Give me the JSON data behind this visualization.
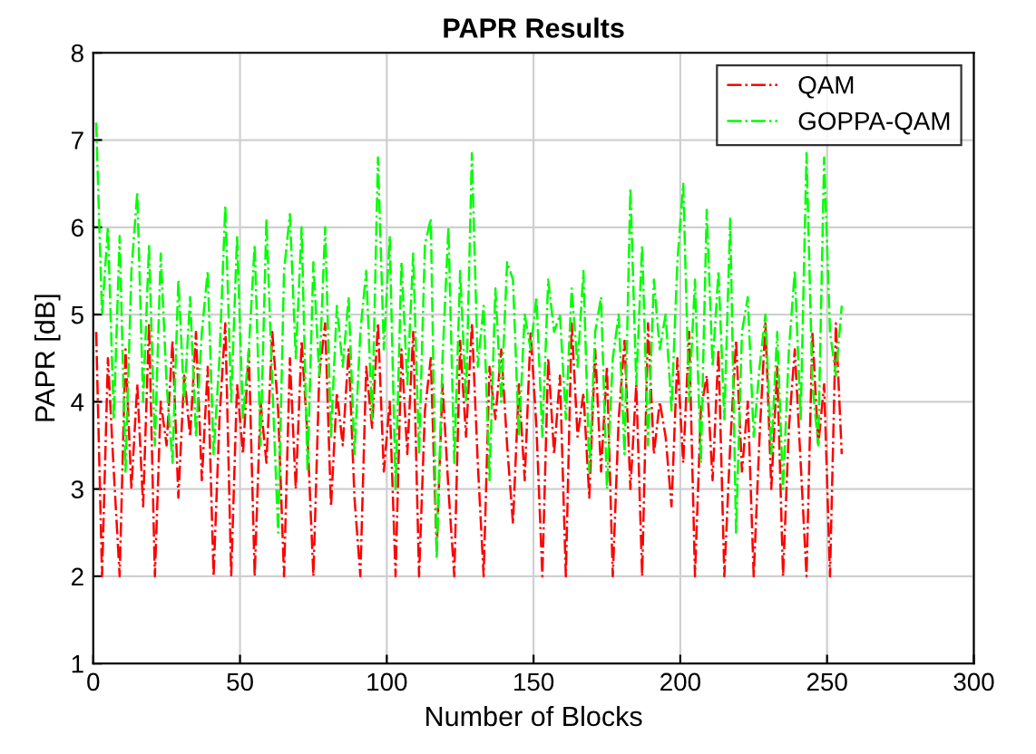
{
  "chart_data": {
    "type": "line",
    "title": "PAPR Results",
    "xlabel": "Number of Blocks",
    "ylabel": "PAPR [dB]",
    "x": [
      1,
      3,
      5,
      7,
      9,
      11,
      13,
      15,
      17,
      19,
      21,
      23,
      25,
      27,
      29,
      31,
      33,
      35,
      37,
      39,
      41,
      43,
      45,
      47,
      49,
      51,
      53,
      55,
      57,
      59,
      61,
      63,
      65,
      67,
      69,
      71,
      73,
      75,
      77,
      79,
      81,
      83,
      85,
      87,
      89,
      91,
      93,
      95,
      97,
      99,
      101,
      103,
      105,
      107,
      109,
      111,
      113,
      115,
      117,
      119,
      121,
      123,
      125,
      127,
      129,
      131,
      133,
      135,
      137,
      139,
      141,
      143,
      145,
      147,
      149,
      151,
      153,
      155,
      157,
      159,
      161,
      163,
      165,
      167,
      169,
      171,
      173,
      175,
      177,
      179,
      181,
      183,
      185,
      187,
      189,
      191,
      193,
      195,
      197,
      199,
      201,
      203,
      205,
      207,
      209,
      211,
      213,
      215,
      217,
      219,
      221,
      223,
      225,
      227,
      229,
      231,
      233,
      235,
      237,
      239,
      241,
      243,
      245,
      247,
      249,
      251,
      253,
      255
    ],
    "series": [
      {
        "name": "QAM",
        "color": "#ff0000",
        "values": [
          4.8,
          2.0,
          4.5,
          3.2,
          2.0,
          4.6,
          3.0,
          4.2,
          2.8,
          4.9,
          2.0,
          4.0,
          3.5,
          4.7,
          2.9,
          4.3,
          3.6,
          4.8,
          3.1,
          4.4,
          2.0,
          3.8,
          4.9,
          2.0,
          4.2,
          3.4,
          4.6,
          2.0,
          4.0,
          3.3,
          4.8,
          3.9,
          2.0,
          4.5,
          3.0,
          4.7,
          3.6,
          2.0,
          4.3,
          4.9,
          2.8,
          4.1,
          3.5,
          4.6,
          2.9,
          2.0,
          4.4,
          3.7,
          4.9,
          3.2,
          4.0,
          2.0,
          4.6,
          3.4,
          4.8,
          2.0,
          3.9,
          4.5,
          2.3,
          4.2,
          3.0,
          2.0,
          4.7,
          3.6,
          4.9,
          3.3,
          2.0,
          4.4,
          3.8,
          4.6,
          3.5,
          2.6,
          4.2,
          3.1,
          4.8,
          3.7,
          2.0,
          4.5,
          3.4,
          4.3,
          2.0,
          4.9,
          3.6,
          4.1,
          2.9,
          4.6,
          3.2,
          4.4,
          2.0,
          3.8,
          4.7,
          3.0,
          4.2,
          2.0,
          4.9,
          3.4,
          4.0,
          3.6,
          2.8,
          4.5,
          3.3,
          4.8,
          2.0,
          3.9,
          4.3,
          3.1,
          4.6,
          2.0,
          3.5,
          4.7,
          3.2,
          4.0,
          2.0,
          3.6,
          4.9,
          3.0,
          4.4,
          2.0,
          3.7,
          4.6,
          3.3,
          2.0,
          4.8,
          3.5,
          4.2,
          2.0,
          4.9,
          3.4
        ]
      },
      {
        "name": "GOPPA-QAM",
        "color": "#00ff00",
        "values": [
          7.2,
          5.0,
          6.0,
          3.8,
          5.9,
          3.2,
          5.5,
          6.4,
          4.0,
          5.8,
          3.5,
          5.7,
          4.2,
          3.3,
          5.4,
          4.0,
          5.2,
          3.6,
          4.8,
          5.5,
          3.4,
          4.5,
          6.25,
          4.0,
          5.9,
          3.8,
          4.6,
          5.8,
          3.5,
          6.1,
          4.2,
          2.5,
          5.5,
          6.15,
          4.5,
          6.0,
          3.2,
          5.6,
          4.3,
          6.0,
          3.6,
          5.1,
          4.4,
          5.2,
          3.4,
          4.8,
          5.5,
          3.8,
          6.8,
          4.6,
          5.9,
          3.0,
          5.6,
          4.2,
          5.7,
          3.4,
          5.8,
          6.1,
          2.2,
          4.5,
          6.0,
          3.3,
          5.5,
          4.0,
          6.85,
          4.4,
          5.1,
          3.1,
          5.3,
          4.0,
          5.6,
          5.4,
          3.6,
          5.0,
          4.6,
          5.2,
          3.6,
          5.4,
          4.8,
          5.0,
          3.8,
          5.3,
          4.4,
          5.5,
          3.2,
          4.8,
          5.2,
          3.0,
          4.5,
          5.0,
          3.4,
          6.45,
          4.2,
          5.8,
          3.5,
          5.4,
          4.6,
          5.0,
          3.9,
          5.6,
          6.5,
          4.0,
          5.4,
          3.3,
          6.2,
          4.4,
          5.5,
          3.8,
          6.1,
          2.5,
          4.8,
          5.2,
          3.6,
          4.4,
          5.0,
          3.4,
          4.8,
          3.0,
          4.6,
          5.5,
          3.8,
          6.85,
          4.2,
          3.5,
          6.8,
          4.8,
          4.3,
          5.1
        ]
      }
    ],
    "xlim": [
      0,
      300
    ],
    "xticks": [
      0,
      50,
      100,
      150,
      200,
      250,
      300
    ],
    "ylim": [
      1,
      8
    ],
    "yticks": [
      1,
      2,
      3,
      4,
      5,
      6,
      7,
      8
    ],
    "grid": true,
    "legend": "top right",
    "line_style": "dashdot"
  }
}
